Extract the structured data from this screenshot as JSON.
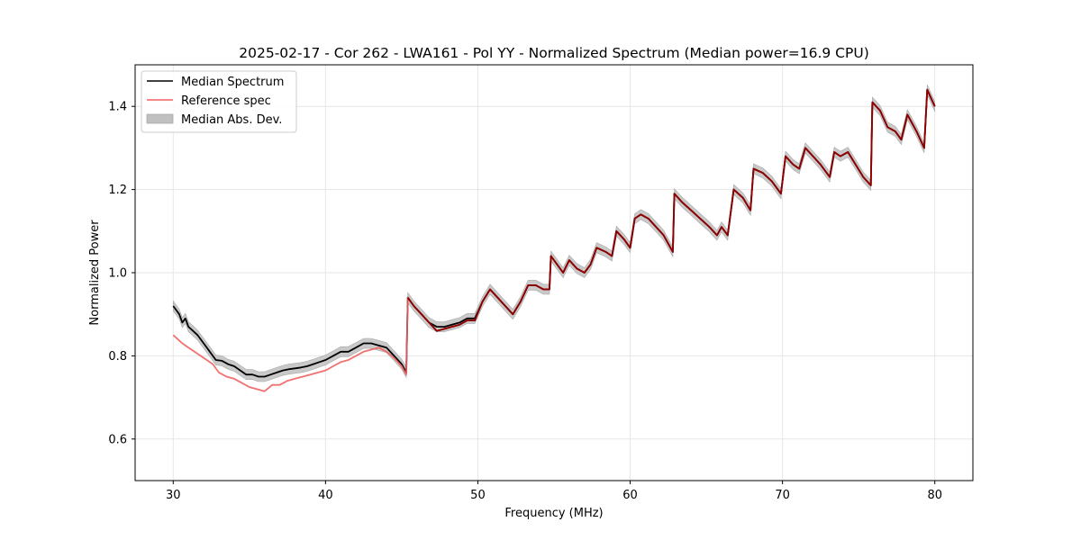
{
  "chart_data": {
    "type": "line",
    "title": "2025-02-17 - Cor 262 - LWA161 - Pol YY - Normalized Spectrum (Median power=16.9 CPU)",
    "xlabel": "Frequency (MHz)",
    "ylabel": "Normalized Power",
    "xlim": [
      27.5,
      82.5
    ],
    "ylim": [
      0.5,
      1.5
    ],
    "xticks": [
      30,
      40,
      50,
      60,
      70,
      80
    ],
    "yticks": [
      0.6,
      0.8,
      1.0,
      1.2,
      1.4
    ],
    "ytick_labels": [
      "0.6",
      "0.8",
      "1.0",
      "1.2",
      "1.4"
    ],
    "grid": true,
    "legend_position": "top-left",
    "legend": [
      "Median Spectrum",
      "Reference spec",
      "Median Abs. Dev."
    ],
    "series": [
      {
        "name": "Median Spectrum",
        "color": "#000000",
        "points": [
          [
            30.0,
            0.92
          ],
          [
            30.2,
            0.91
          ],
          [
            30.4,
            0.9
          ],
          [
            30.6,
            0.88
          ],
          [
            30.8,
            0.89
          ],
          [
            31.0,
            0.87
          ],
          [
            31.3,
            0.86
          ],
          [
            31.6,
            0.85
          ],
          [
            32.0,
            0.83
          ],
          [
            32.4,
            0.81
          ],
          [
            32.8,
            0.79
          ],
          [
            33.2,
            0.788
          ],
          [
            33.6,
            0.78
          ],
          [
            34.0,
            0.775
          ],
          [
            34.4,
            0.765
          ],
          [
            34.8,
            0.755
          ],
          [
            35.2,
            0.755
          ],
          [
            35.6,
            0.75
          ],
          [
            36.0,
            0.75
          ],
          [
            36.4,
            0.755
          ],
          [
            36.8,
            0.76
          ],
          [
            37.2,
            0.765
          ],
          [
            37.6,
            0.768
          ],
          [
            38.0,
            0.77
          ],
          [
            38.4,
            0.772
          ],
          [
            38.8,
            0.775
          ],
          [
            39.2,
            0.78
          ],
          [
            39.6,
            0.785
          ],
          [
            40.0,
            0.79
          ],
          [
            40.5,
            0.8
          ],
          [
            41.0,
            0.81
          ],
          [
            41.5,
            0.81
          ],
          [
            42.0,
            0.82
          ],
          [
            42.5,
            0.83
          ],
          [
            43.0,
            0.83
          ],
          [
            43.5,
            0.825
          ],
          [
            44.0,
            0.82
          ],
          [
            44.5,
            0.8
          ],
          [
            45.0,
            0.78
          ],
          [
            45.3,
            0.76
          ],
          [
            45.4,
            0.94
          ],
          [
            45.8,
            0.92
          ],
          [
            46.3,
            0.9
          ],
          [
            46.8,
            0.88
          ],
          [
            47.3,
            0.87
          ],
          [
            47.8,
            0.87
          ],
          [
            48.3,
            0.875
          ],
          [
            48.8,
            0.88
          ],
          [
            49.3,
            0.89
          ],
          [
            49.8,
            0.89
          ],
          [
            50.3,
            0.93
          ],
          [
            50.8,
            0.96
          ],
          [
            51.3,
            0.94
          ],
          [
            51.8,
            0.92
          ],
          [
            52.3,
            0.9
          ],
          [
            52.8,
            0.93
          ],
          [
            53.3,
            0.97
          ],
          [
            53.8,
            0.97
          ],
          [
            54.3,
            0.96
          ],
          [
            54.7,
            0.96
          ],
          [
            54.8,
            1.04
          ],
          [
            55.2,
            1.02
          ],
          [
            55.6,
            1.0
          ],
          [
            56.0,
            1.03
          ],
          [
            56.5,
            1.01
          ],
          [
            57.0,
            1.0
          ],
          [
            57.4,
            1.02
          ],
          [
            57.8,
            1.06
          ],
          [
            58.4,
            1.05
          ],
          [
            58.8,
            1.04
          ],
          [
            59.1,
            1.1
          ],
          [
            59.6,
            1.08
          ],
          [
            60.0,
            1.06
          ],
          [
            60.3,
            1.13
          ],
          [
            60.7,
            1.14
          ],
          [
            61.2,
            1.13
          ],
          [
            61.7,
            1.11
          ],
          [
            62.2,
            1.09
          ],
          [
            62.8,
            1.05
          ],
          [
            62.9,
            1.19
          ],
          [
            63.4,
            1.17
          ],
          [
            64.0,
            1.15
          ],
          [
            64.6,
            1.13
          ],
          [
            65.2,
            1.11
          ],
          [
            65.7,
            1.09
          ],
          [
            66.0,
            1.11
          ],
          [
            66.4,
            1.09
          ],
          [
            66.8,
            1.2
          ],
          [
            67.4,
            1.18
          ],
          [
            67.9,
            1.15
          ],
          [
            68.1,
            1.25
          ],
          [
            68.7,
            1.24
          ],
          [
            69.3,
            1.22
          ],
          [
            69.9,
            1.19
          ],
          [
            70.2,
            1.28
          ],
          [
            70.7,
            1.26
          ],
          [
            71.1,
            1.25
          ],
          [
            71.5,
            1.3
          ],
          [
            72.0,
            1.28
          ],
          [
            72.5,
            1.26
          ],
          [
            73.1,
            1.23
          ],
          [
            73.4,
            1.29
          ],
          [
            73.8,
            1.28
          ],
          [
            74.3,
            1.29
          ],
          [
            74.8,
            1.26
          ],
          [
            75.3,
            1.23
          ],
          [
            75.8,
            1.21
          ],
          [
            75.9,
            1.41
          ],
          [
            76.4,
            1.39
          ],
          [
            76.9,
            1.35
          ],
          [
            77.4,
            1.34
          ],
          [
            77.8,
            1.32
          ],
          [
            78.2,
            1.38
          ],
          [
            78.8,
            1.34
          ],
          [
            79.3,
            1.3
          ],
          [
            79.5,
            1.44
          ],
          [
            80.0,
            1.4
          ]
        ]
      },
      {
        "name": "Reference spec",
        "color": "#f06060",
        "points": [
          [
            30.0,
            0.85
          ],
          [
            30.3,
            0.84
          ],
          [
            30.6,
            0.83
          ],
          [
            31.0,
            0.82
          ],
          [
            31.4,
            0.81
          ],
          [
            31.8,
            0.8
          ],
          [
            32.2,
            0.79
          ],
          [
            32.6,
            0.78
          ],
          [
            33.0,
            0.76
          ],
          [
            33.5,
            0.75
          ],
          [
            34.0,
            0.745
          ],
          [
            34.5,
            0.735
          ],
          [
            35.0,
            0.725
          ],
          [
            35.5,
            0.72
          ],
          [
            36.0,
            0.715
          ],
          [
            36.5,
            0.73
          ],
          [
            37.0,
            0.73
          ],
          [
            37.5,
            0.74
          ],
          [
            38.0,
            0.745
          ],
          [
            38.5,
            0.75
          ],
          [
            39.0,
            0.755
          ],
          [
            39.5,
            0.76
          ],
          [
            40.0,
            0.765
          ],
          [
            40.5,
            0.775
          ],
          [
            41.0,
            0.785
          ],
          [
            41.5,
            0.79
          ],
          [
            42.0,
            0.8
          ],
          [
            42.5,
            0.81
          ],
          [
            43.0,
            0.815
          ],
          [
            43.5,
            0.82
          ],
          [
            44.0,
            0.81
          ],
          [
            44.5,
            0.795
          ],
          [
            45.0,
            0.775
          ],
          [
            45.3,
            0.755
          ],
          [
            45.4,
            0.94
          ],
          [
            45.8,
            0.92
          ],
          [
            46.3,
            0.9
          ],
          [
            46.8,
            0.88
          ],
          [
            47.3,
            0.86
          ],
          [
            47.8,
            0.865
          ],
          [
            48.3,
            0.87
          ],
          [
            48.8,
            0.875
          ],
          [
            49.3,
            0.885
          ],
          [
            49.8,
            0.885
          ],
          [
            50.3,
            0.93
          ],
          [
            50.8,
            0.96
          ],
          [
            51.3,
            0.94
          ],
          [
            51.8,
            0.92
          ],
          [
            52.3,
            0.9
          ],
          [
            52.8,
            0.93
          ],
          [
            53.3,
            0.97
          ],
          [
            53.8,
            0.97
          ],
          [
            54.3,
            0.96
          ],
          [
            54.7,
            0.96
          ],
          [
            54.8,
            1.04
          ],
          [
            55.2,
            1.02
          ],
          [
            55.6,
            1.0
          ],
          [
            56.0,
            1.03
          ],
          [
            56.5,
            1.01
          ],
          [
            57.0,
            1.0
          ],
          [
            57.4,
            1.02
          ],
          [
            57.8,
            1.06
          ],
          [
            58.4,
            1.05
          ],
          [
            58.8,
            1.04
          ],
          [
            59.1,
            1.1
          ],
          [
            59.6,
            1.08
          ],
          [
            60.0,
            1.06
          ],
          [
            60.3,
            1.13
          ],
          [
            60.7,
            1.14
          ],
          [
            61.2,
            1.13
          ],
          [
            61.7,
            1.11
          ],
          [
            62.2,
            1.09
          ],
          [
            62.8,
            1.05
          ],
          [
            62.9,
            1.19
          ],
          [
            63.4,
            1.17
          ],
          [
            64.0,
            1.15
          ],
          [
            64.6,
            1.13
          ],
          [
            65.2,
            1.11
          ],
          [
            65.7,
            1.09
          ],
          [
            66.0,
            1.11
          ],
          [
            66.4,
            1.09
          ],
          [
            66.8,
            1.2
          ],
          [
            67.4,
            1.18
          ],
          [
            67.9,
            1.15
          ],
          [
            68.1,
            1.25
          ],
          [
            68.7,
            1.24
          ],
          [
            69.3,
            1.22
          ],
          [
            69.9,
            1.19
          ],
          [
            70.2,
            1.28
          ],
          [
            70.7,
            1.26
          ],
          [
            71.1,
            1.25
          ],
          [
            71.5,
            1.3
          ],
          [
            72.0,
            1.28
          ],
          [
            72.5,
            1.26
          ],
          [
            73.1,
            1.23
          ],
          [
            73.4,
            1.29
          ],
          [
            73.8,
            1.28
          ],
          [
            74.3,
            1.29
          ],
          [
            74.8,
            1.26
          ],
          [
            75.3,
            1.23
          ],
          [
            75.8,
            1.21
          ],
          [
            75.9,
            1.41
          ],
          [
            76.4,
            1.39
          ],
          [
            76.9,
            1.35
          ],
          [
            77.4,
            1.34
          ],
          [
            77.8,
            1.32
          ],
          [
            78.2,
            1.38
          ],
          [
            78.8,
            1.34
          ],
          [
            79.3,
            1.3
          ],
          [
            79.5,
            1.44
          ],
          [
            80.0,
            1.4
          ]
        ]
      }
    ],
    "band": {
      "name": "Median Abs. Dev.",
      "of_series": "Median Spectrum",
      "half_width": 0.012,
      "color": "#c0c0c0"
    },
    "overlap_color": "#8b0000"
  }
}
